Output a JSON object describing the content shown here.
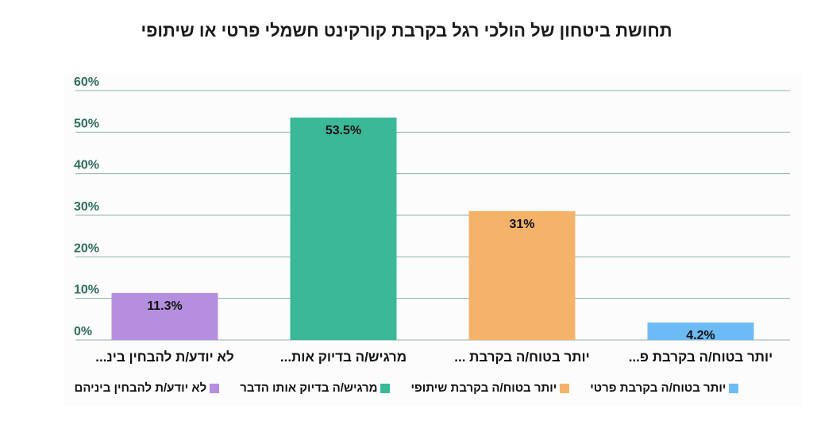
{
  "chart_data": {
    "type": "bar",
    "title": "תחושת ביטחון של הולכי רגל בקרבת קורקינט חשמלי פרטי או שיתופי",
    "categories": [
      "לא יודע/ת להבחין בינ...",
      "מרגיש/ה בדיוק אות...",
      "יותר בטוח/ה בקרבת ...",
      "יותר בטוח/ה בקרבת פ..."
    ],
    "values": [
      11.3,
      53.5,
      31,
      4.2
    ],
    "data_labels": [
      "11.3%",
      "53.5%",
      "31%",
      "4.2%"
    ],
    "colors": [
      "#b48fdf",
      "#3bb898",
      "#f5b36a",
      "#6dbbf5"
    ],
    "yticks": [
      0,
      10,
      20,
      30,
      40,
      50,
      60
    ],
    "ytick_labels": [
      "0%",
      "10%",
      "20%",
      "30%",
      "40%",
      "50%",
      "60%"
    ],
    "ylim": [
      0,
      60
    ],
    "xlabel": "",
    "ylabel": "",
    "grid": true,
    "legend_position": "bottom",
    "legend": [
      {
        "label": "לא יודע/ת להבחין ביניהם",
        "color": "#b48fdf"
      },
      {
        "label": "מרגיש/ה בדיוק אותו הדבר",
        "color": "#3bb898"
      },
      {
        "label": "יותר בטוח/ה בקרבת שיתופי",
        "color": "#f5b36a"
      },
      {
        "label": "יותר בטוח/ה בקרבת פרטי",
        "color": "#6dbbf5"
      }
    ]
  }
}
